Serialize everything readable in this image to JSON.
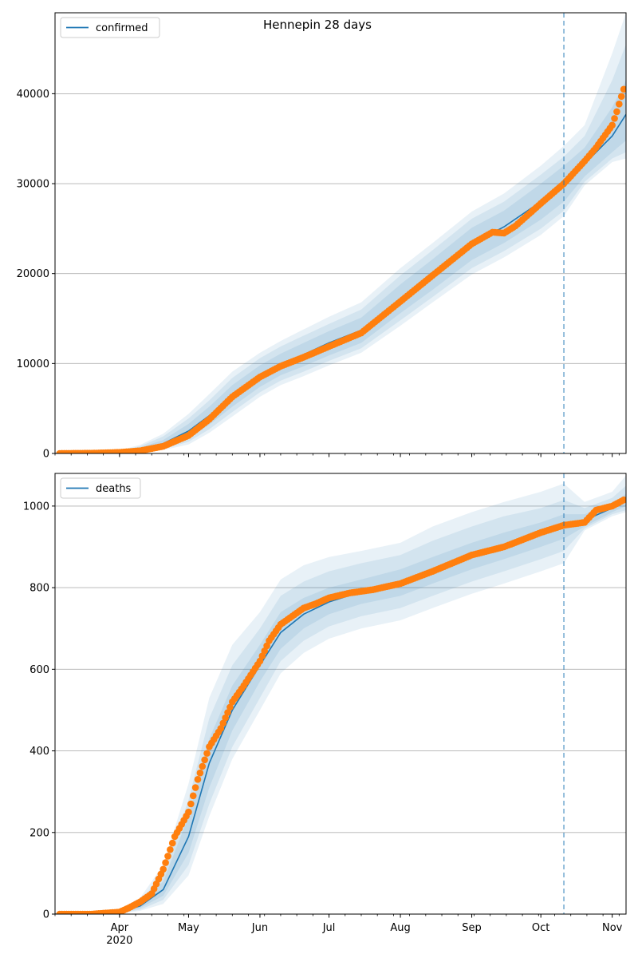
{
  "title": "Hennepin 28 days",
  "colors": {
    "model_line": "#1f77b4",
    "observed_points": "#ff7f0e",
    "band": "#1f77b4",
    "forecast_marker": "#1f77b4",
    "grid": "#b0b0b0"
  },
  "x_axis": {
    "start": "2020-03-04",
    "end": "2020-11-07",
    "year_label": "2020",
    "month_ticks": [
      {
        "date": "2020-04-01",
        "label": "Apr"
      },
      {
        "date": "2020-05-01",
        "label": "May"
      },
      {
        "date": "2020-06-01",
        "label": "Jun"
      },
      {
        "date": "2020-07-01",
        "label": "Jul"
      },
      {
        "date": "2020-08-01",
        "label": "Aug"
      },
      {
        "date": "2020-09-01",
        "label": "Sep"
      },
      {
        "date": "2020-10-01",
        "label": "Oct"
      },
      {
        "date": "2020-11-01",
        "label": "Nov"
      }
    ]
  },
  "forecast_start": "2020-10-11",
  "chart_data": [
    {
      "type": "line",
      "legend": "confirmed",
      "legend_location": "upper left",
      "grid": "horizontal",
      "ylim": [
        0,
        49000
      ],
      "yticks": [
        0,
        10000,
        20000,
        30000,
        40000
      ],
      "model": {
        "dates": [
          "2020-03-04",
          "2020-03-20",
          "2020-04-01",
          "2020-04-10",
          "2020-04-20",
          "2020-05-01",
          "2020-05-10",
          "2020-05-20",
          "2020-06-01",
          "2020-06-10",
          "2020-06-20",
          "2020-07-01",
          "2020-07-15",
          "2020-08-01",
          "2020-08-15",
          "2020-09-01",
          "2020-09-15",
          "2020-10-01",
          "2020-10-11",
          "2020-10-20",
          "2020-11-01",
          "2020-11-07"
        ],
        "values": [
          0,
          50,
          200,
          500,
          1100,
          2500,
          4200,
          6400,
          8600,
          9900,
          11000,
          12300,
          13700,
          17200,
          19900,
          23300,
          25200,
          28000,
          30000,
          32200,
          35300,
          37700
        ],
        "bands": [
          {
            "lower": [
              0,
              40,
              150,
              350,
              700,
              1700,
              3200,
              5200,
              7400,
              8700,
              9700,
              10900,
              12300,
              15600,
              18200,
              21500,
              23400,
              26000,
              28000,
              30800,
              33500,
              34800
            ],
            "upper": [
              0,
              60,
              250,
              650,
              1500,
              3300,
              5200,
              7600,
              9800,
              11100,
              12300,
              13600,
              15100,
              18800,
              21600,
              25100,
              27000,
              30000,
              32000,
              34000,
              38500,
              41500
            ]
          },
          {
            "lower": [
              0,
              30,
              120,
              260,
              500,
              1300,
              2700,
              4600,
              6800,
              8100,
              9100,
              10300,
              11700,
              14800,
              17400,
              20600,
              22500,
              25000,
              27000,
              30200,
              32800,
              33500
            ],
            "upper": [
              0,
              70,
              300,
              800,
              1900,
              3900,
              5900,
              8400,
              10600,
              11900,
              13100,
              14400,
              16000,
              19800,
              22600,
              26100,
              28000,
              31000,
              33000,
              35300,
              41500,
              45500
            ]
          },
          {
            "lower": [
              0,
              20,
              90,
              200,
              380,
              1000,
              2300,
              4100,
              6300,
              7600,
              8600,
              9800,
              11200,
              14200,
              16800,
              19900,
              21800,
              24300,
              26400,
              29800,
              32400,
              32800
            ],
            "upper": [
              0,
              80,
              350,
              950,
              2200,
              4400,
              6600,
              9100,
              11200,
              12500,
              13800,
              15200,
              16800,
              20600,
              23400,
              26900,
              28900,
              32000,
              34200,
              36500,
              44500,
              49000
            ]
          }
        ]
      },
      "observed": {
        "dates": [
          "2020-03-06",
          "2020-03-20",
          "2020-04-01",
          "2020-04-10",
          "2020-04-20",
          "2020-05-01",
          "2020-05-10",
          "2020-05-20",
          "2020-06-01",
          "2020-06-10",
          "2020-06-20",
          "2020-07-01",
          "2020-07-15",
          "2020-08-01",
          "2020-08-15",
          "2020-09-01",
          "2020-09-10",
          "2020-09-15",
          "2020-09-20",
          "2020-10-01",
          "2020-10-11",
          "2020-10-20",
          "2020-10-25",
          "2020-11-01",
          "2020-11-03",
          "2020-11-05",
          "2020-11-06"
        ],
        "values": [
          0,
          30,
          120,
          300,
          800,
          2000,
          3800,
          6300,
          8500,
          9700,
          10700,
          11900,
          13400,
          16900,
          19800,
          23300,
          24600,
          24500,
          25300,
          27800,
          30000,
          32500,
          34000,
          36500,
          38000,
          39700,
          40500
        ]
      }
    },
    {
      "type": "line",
      "legend": "deaths",
      "legend_location": "upper left",
      "grid": "horizontal",
      "ylim": [
        0,
        1080
      ],
      "yticks": [
        0,
        200,
        400,
        600,
        800,
        1000
      ],
      "model": {
        "dates": [
          "2020-03-04",
          "2020-03-20",
          "2020-04-01",
          "2020-04-10",
          "2020-04-20",
          "2020-05-01",
          "2020-05-10",
          "2020-05-20",
          "2020-06-01",
          "2020-06-10",
          "2020-06-20",
          "2020-07-01",
          "2020-07-15",
          "2020-08-01",
          "2020-08-15",
          "2020-09-01",
          "2020-09-15",
          "2020-10-01",
          "2020-10-11",
          "2020-10-20",
          "2020-11-01",
          "2020-11-07"
        ],
        "values": [
          0,
          0,
          5,
          20,
          60,
          190,
          370,
          500,
          610,
          690,
          735,
          765,
          790,
          810,
          840,
          875,
          900,
          930,
          950,
          965,
          995,
          1015
        ],
        "bands": [
          {
            "lower": [
              0,
              0,
              3,
              15,
              45,
              150,
              310,
              450,
              570,
              650,
              700,
              735,
              760,
              780,
              810,
              845,
              870,
              900,
              920,
              950,
              985,
              1000
            ],
            "upper": [
              0,
              0,
              7,
              26,
              80,
              240,
              430,
              560,
              660,
              740,
              775,
              800,
              820,
              845,
              875,
              910,
              935,
              960,
              980,
              980,
              1005,
              1030
            ]
          },
          {
            "lower": [
              0,
              0,
              2,
              11,
              35,
              120,
              270,
              410,
              530,
              620,
              670,
              705,
              730,
              750,
              780,
              815,
              840,
              870,
              890,
              945,
              980,
              990
            ],
            "upper": [
              0,
              0,
              9,
              32,
              100,
              280,
              480,
              610,
              700,
              780,
              815,
              840,
              860,
              880,
              915,
              950,
              975,
              995,
              1015,
              995,
              1020,
              1050
            ]
          },
          {
            "lower": [
              0,
              0,
              1,
              8,
              25,
              95,
              240,
              380,
              500,
              590,
              640,
              675,
              700,
              720,
              750,
              785,
              810,
              840,
              860,
              940,
              975,
              985
            ],
            "upper": [
              0,
              0,
              11,
              40,
              120,
              320,
              530,
              660,
              740,
              820,
              855,
              875,
              890,
              910,
              950,
              985,
              1010,
              1035,
              1055,
              1010,
              1035,
              1075
            ]
          }
        ]
      },
      "observed": {
        "dates": [
          "2020-03-06",
          "2020-03-20",
          "2020-04-01",
          "2020-04-05",
          "2020-04-10",
          "2020-04-15",
          "2020-04-20",
          "2020-04-25",
          "2020-05-01",
          "2020-05-05",
          "2020-05-10",
          "2020-05-15",
          "2020-05-20",
          "2020-05-25",
          "2020-06-01",
          "2020-06-05",
          "2020-06-10",
          "2020-06-15",
          "2020-06-20",
          "2020-06-25",
          "2020-07-01",
          "2020-07-10",
          "2020-07-20",
          "2020-08-01",
          "2020-08-15",
          "2020-09-01",
          "2020-09-15",
          "2020-10-01",
          "2020-10-11",
          "2020-10-20",
          "2020-10-25",
          "2020-11-01",
          "2020-11-06"
        ],
        "values": [
          0,
          0,
          5,
          15,
          30,
          50,
          110,
          190,
          250,
          330,
          410,
          455,
          520,
          560,
          620,
          670,
          710,
          730,
          750,
          760,
          775,
          787,
          795,
          810,
          840,
          880,
          900,
          935,
          953,
          960,
          990,
          1000,
          1015
        ]
      }
    }
  ]
}
